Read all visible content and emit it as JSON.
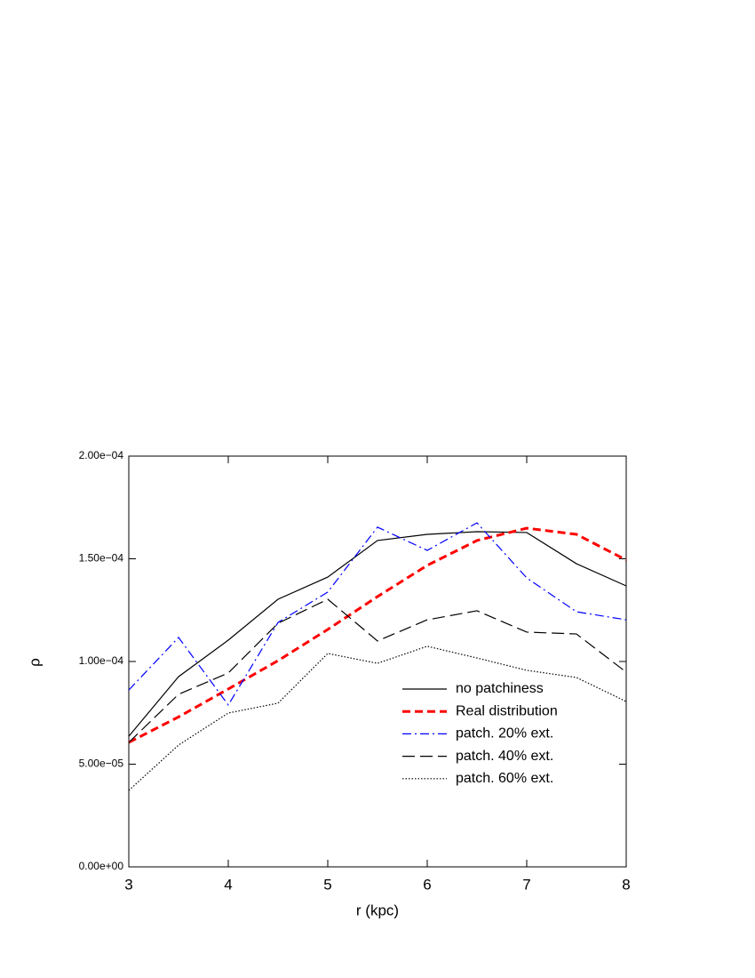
{
  "chart_data": {
    "type": "line",
    "x_label": "r (kpc)",
    "y_label": "ρ",
    "x": [
      3,
      3.5,
      4,
      4.5,
      5,
      5.5,
      6,
      6.5,
      7,
      7.5,
      8
    ],
    "xlim": [
      3,
      8
    ],
    "xticks": [
      3,
      4,
      5,
      6,
      7,
      8
    ],
    "ylim": [
      0,
      0.0002
    ],
    "yticks": [
      {
        "value": 0,
        "label": "0.00e+00"
      },
      {
        "value": 5e-05,
        "label": "5.00e−05"
      },
      {
        "value": 0.0001,
        "label": "1.00e−04"
      },
      {
        "value": 0.00015,
        "label": "1.50e−04"
      },
      {
        "value": 0.0002,
        "label": "2.00e−04"
      }
    ],
    "grid": false,
    "legend": "lower right",
    "series": [
      {
        "name": "no patchiness",
        "color": "#000000",
        "dash": "solid",
        "values": [
          6.36e-05,
          9.26e-05,
          0.0001104,
          0.0001303,
          0.0001411,
          0.0001589,
          0.0001619,
          0.0001632,
          0.0001628,
          0.0001476,
          0.0001368
        ]
      },
      {
        "name": "Real distribution",
        "color": "#ff0000",
        "dash": "bold-dash",
        "values": [
          6.06e-05,
          7.3e-05,
          8.66e-05,
          0.0001004,
          0.0001156,
          0.0001316,
          0.0001468,
          0.0001589,
          0.0001649,
          0.0001619,
          0.0001494
        ]
      },
      {
        "name": "patch. 20% ext.",
        "color": "#0000ff",
        "dash": "dashdot",
        "values": [
          8.61e-05,
          0.0001117,
          7.88e-05,
          0.000119,
          0.0001338,
          0.0001654,
          0.0001541,
          0.0001675,
          0.0001407,
          0.0001242,
          0.0001203
        ]
      },
      {
        "name": "patch. 40% ext.",
        "color": "#000000",
        "dash": "longdash",
        "values": [
          6.06e-05,
          8.4e-05,
          9.44e-05,
          0.0001186,
          0.0001303,
          0.00011,
          0.0001203,
          0.0001247,
          0.0001143,
          0.0001134,
          9.48e-05
        ]
      },
      {
        "name": "patch. 60% ext.",
        "color": "#000000",
        "dash": "dot",
        "values": [
          3.72e-05,
          5.93e-05,
          7.49e-05,
          7.97e-05,
          0.0001039,
          9.91e-05,
          0.0001074,
          0.0001017,
          9.57e-05,
          9.22e-05,
          8.05e-05
        ]
      }
    ]
  }
}
